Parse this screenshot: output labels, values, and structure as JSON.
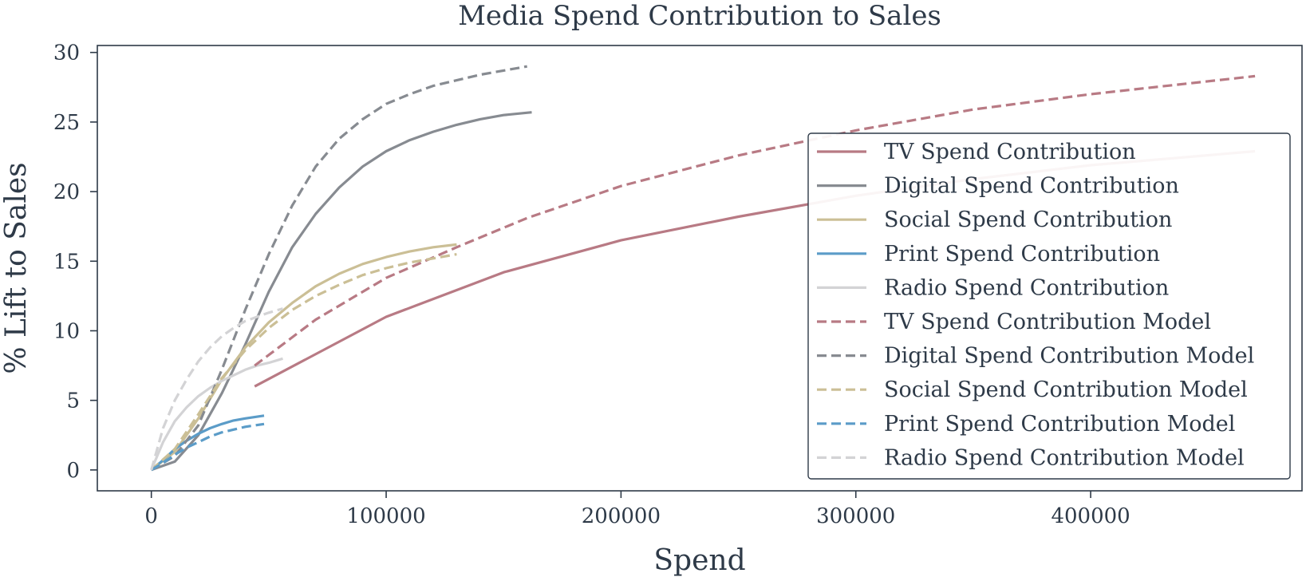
{
  "chart_data": {
    "type": "line",
    "title": "Media Spend Contribution to Sales",
    "xlabel": "Spend",
    "ylabel": "% Lift to Sales",
    "xlim": [
      -23000,
      490000
    ],
    "ylim": [
      -1.5,
      30.5
    ],
    "xticks": [
      0,
      100000,
      200000,
      300000,
      400000
    ],
    "yticks": [
      0,
      5,
      10,
      15,
      20,
      25,
      30
    ],
    "grid": false,
    "legend_position": "center-right",
    "series": [
      {
        "name": "TV Spend Contribution",
        "style": "solid",
        "color": "#b87a84",
        "x": [
          44000,
          100000,
          150000,
          200000,
          250000,
          300000,
          350000,
          400000,
          470000
        ],
        "y": [
          6.0,
          11.0,
          14.2,
          16.5,
          18.2,
          19.7,
          20.9,
          21.9,
          22.9
        ]
      },
      {
        "name": "Digital Spend Contribution",
        "style": "solid",
        "color": "#878b91",
        "x": [
          0,
          10000,
          20000,
          30000,
          40000,
          50000,
          60000,
          70000,
          80000,
          90000,
          100000,
          110000,
          120000,
          130000,
          140000,
          150000,
          162000
        ],
        "y": [
          0,
          0.6,
          2.5,
          5.5,
          9.0,
          12.8,
          16.0,
          18.4,
          20.3,
          21.8,
          22.9,
          23.7,
          24.3,
          24.8,
          25.2,
          25.5,
          25.7
        ]
      },
      {
        "name": "Social Spend Contribution",
        "style": "solid",
        "color": "#cbbf96",
        "x": [
          0,
          10000,
          20000,
          30000,
          40000,
          50000,
          60000,
          70000,
          80000,
          90000,
          100000,
          110000,
          120000,
          130000
        ],
        "y": [
          0,
          1.3,
          3.7,
          6.5,
          8.8,
          10.6,
          12.0,
          13.2,
          14.1,
          14.8,
          15.3,
          15.7,
          16.0,
          16.2
        ]
      },
      {
        "name": "Print Spend Contribution",
        "style": "solid",
        "color": "#5b9cc8",
        "x": [
          0,
          5000,
          10000,
          15000,
          20000,
          25000,
          30000,
          35000,
          40000,
          48000
        ],
        "y": [
          0,
          0.7,
          1.5,
          2.1,
          2.6,
          3.0,
          3.3,
          3.55,
          3.7,
          3.9
        ]
      },
      {
        "name": "Radio Spend Contribution",
        "style": "solid",
        "color": "#d3d3d5",
        "x": [
          0,
          5000,
          10000,
          15000,
          20000,
          25000,
          30000,
          35000,
          40000,
          45000,
          50000,
          56000
        ],
        "y": [
          0,
          2.0,
          3.5,
          4.5,
          5.3,
          5.9,
          6.4,
          6.8,
          7.2,
          7.5,
          7.7,
          8.0
        ]
      },
      {
        "name": "TV Spend Contribution Model",
        "style": "dashed",
        "color": "#b87a84",
        "x": [
          44000,
          70000,
          100000,
          130000,
          160000,
          200000,
          250000,
          300000,
          350000,
          400000,
          470000
        ],
        "y": [
          7.5,
          10.8,
          13.8,
          16.0,
          18.1,
          20.4,
          22.6,
          24.4,
          25.9,
          27.0,
          28.3
        ]
      },
      {
        "name": "Digital Spend Contribution Model",
        "style": "dashed",
        "color": "#878b91",
        "x": [
          0,
          10000,
          20000,
          30000,
          40000,
          50000,
          60000,
          70000,
          80000,
          90000,
          100000,
          110000,
          120000,
          130000,
          140000,
          150000,
          160000
        ],
        "y": [
          0,
          1.0,
          3.2,
          7.2,
          11.5,
          15.5,
          19.0,
          21.8,
          23.8,
          25.2,
          26.3,
          27.0,
          27.6,
          28.0,
          28.4,
          28.7,
          29.0
        ]
      },
      {
        "name": "Social Spend Contribution Model",
        "style": "dashed",
        "color": "#cbbf96",
        "x": [
          0,
          10000,
          20000,
          30000,
          40000,
          50000,
          60000,
          70000,
          80000,
          90000,
          100000,
          110000,
          120000,
          130000
        ],
        "y": [
          0,
          1.5,
          4.0,
          6.6,
          8.6,
          10.2,
          11.5,
          12.5,
          13.3,
          14.0,
          14.5,
          14.9,
          15.2,
          15.5
        ]
      },
      {
        "name": "Print Spend Contribution Model",
        "style": "dashed",
        "color": "#5b9cc8",
        "x": [
          0,
          5000,
          10000,
          15000,
          20000,
          25000,
          30000,
          35000,
          40000,
          48000
        ],
        "y": [
          0,
          0.5,
          1.1,
          1.6,
          2.0,
          2.4,
          2.7,
          2.9,
          3.1,
          3.3
        ]
      },
      {
        "name": "Radio Spend Contribution Model",
        "style": "dashed",
        "color": "#d3d3d5",
        "x": [
          0,
          5000,
          10000,
          15000,
          20000,
          25000,
          30000,
          35000,
          40000,
          45000,
          50000,
          56000
        ],
        "y": [
          0,
          3.0,
          5.0,
          6.5,
          7.8,
          8.8,
          9.6,
          10.2,
          10.7,
          11.0,
          11.3,
          11.6
        ]
      }
    ]
  }
}
